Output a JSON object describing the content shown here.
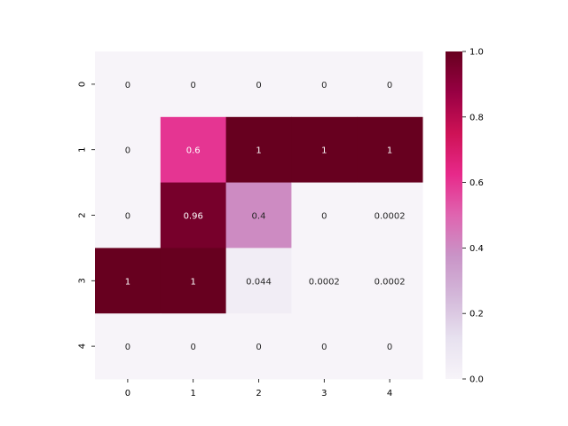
{
  "chart_data": {
    "type": "heatmap",
    "x_categories": [
      "0",
      "1",
      "2",
      "3",
      "4"
    ],
    "y_categories": [
      "0",
      "1",
      "2",
      "3",
      "4"
    ],
    "values": [
      [
        0,
        0,
        0,
        0,
        0
      ],
      [
        0,
        0.6,
        1,
        1,
        1
      ],
      [
        0,
        0.96,
        0.4,
        0,
        0.0002
      ],
      [
        1,
        1,
        0.044,
        0.0002,
        0.0002
      ],
      [
        0,
        0,
        0,
        0,
        0
      ]
    ],
    "annotations": [
      [
        "0",
        "0",
        "0",
        "0",
        "0"
      ],
      [
        "0",
        "0.6",
        "1",
        "1",
        "1"
      ],
      [
        "0",
        "0.96",
        "0.4",
        "0",
        "0.0002"
      ],
      [
        "1",
        "1",
        "0.044",
        "0.0002",
        "0.0002"
      ],
      [
        "0",
        "0",
        "0",
        "0",
        "0"
      ]
    ],
    "colorbar": {
      "range": [
        0.0,
        1.0
      ],
      "ticks": [
        0.0,
        0.2,
        0.4,
        0.6,
        0.8,
        1.0
      ],
      "tick_labels": [
        "0.0",
        "0.2",
        "0.4",
        "0.6",
        "0.8",
        "1.0"
      ]
    },
    "colormap": "PuRd",
    "colormap_stops": [
      "#f7f4f9",
      "#e7e1ef",
      "#d4b9da",
      "#c994c7",
      "#df65b0",
      "#e7298a",
      "#ce1256",
      "#980043",
      "#67001f"
    ],
    "title": "",
    "xlabel": "",
    "ylabel": ""
  }
}
